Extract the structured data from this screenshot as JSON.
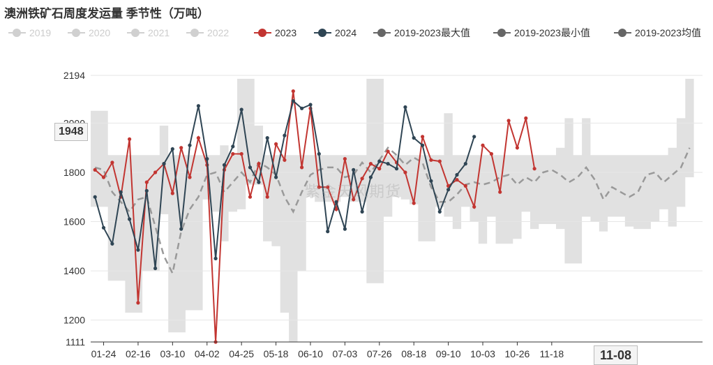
{
  "title": "澳洲铁矿石周度发运量 季节性（万吨）",
  "watermark": "紫金天风期货",
  "pointer": {
    "y_value": "1948",
    "x_value": "11-08"
  },
  "legend": [
    {
      "key": "y2019",
      "label": "2019",
      "color": "#d0d0d0",
      "active": false
    },
    {
      "key": "y2020",
      "label": "2020",
      "color": "#d0d0d0",
      "active": false
    },
    {
      "key": "y2021",
      "label": "2021",
      "color": "#d0d0d0",
      "active": false
    },
    {
      "key": "y2022",
      "label": "2022",
      "color": "#d0d0d0",
      "active": false
    },
    {
      "key": "y2023",
      "label": "2023",
      "color": "#c23531",
      "active": true
    },
    {
      "key": "y2024",
      "label": "2024",
      "color": "#2f4554",
      "active": true
    },
    {
      "key": "max",
      "label": "2019-2023最大值",
      "color": "#666666",
      "active": true
    },
    {
      "key": "min",
      "label": "2019-2023最小值",
      "color": "#666666",
      "active": true
    },
    {
      "key": "avg",
      "label": "2019-2023均值",
      "color": "#666666",
      "active": true
    }
  ],
  "chart_data": {
    "type": "line",
    "title": "澳洲铁矿石周度发运量 季节性（万吨）",
    "ylim": [
      1111,
      2194
    ],
    "y_ticks": [
      1111,
      1200,
      1400,
      1600,
      1800,
      2000,
      2194
    ],
    "x_tick_labels": [
      "01-24",
      "02-16",
      "03-10",
      "04-02",
      "04-25",
      "05-18",
      "06-10",
      "07-03",
      "07-26",
      "08-18",
      "09-10",
      "10-03",
      "10-26",
      "11-18"
    ],
    "grid": true,
    "legend_position": "top",
    "band_max": [
      2050,
      2050,
      1870,
      1870,
      1870,
      1870,
      1870,
      1870,
      1990,
      1870,
      1870,
      1870,
      1870,
      1870,
      1870,
      1910,
      1870,
      2180,
      2180,
      1990,
      1870,
      1870,
      1870,
      1870,
      1870,
      1870,
      1870,
      1870,
      1870,
      1870,
      1870,
      1870,
      2180,
      2180,
      1870,
      1870,
      1870,
      1870,
      1870,
      1870,
      1870,
      2040,
      1870,
      1870,
      1870,
      1870,
      1870,
      1870,
      1870,
      1870,
      1870,
      1870,
      1870,
      1870,
      1900,
      2020,
      1870,
      2020,
      1870,
      1870,
      1870,
      1870,
      1870,
      1870,
      1870,
      1870,
      1870,
      1900,
      2020,
      2180
    ],
    "band_min": [
      1660,
      1660,
      1360,
      1360,
      1230,
      1230,
      1400,
      1400,
      1630,
      1150,
      1150,
      1240,
      1240,
      1690,
      1640,
      1520,
      1640,
      1650,
      1750,
      1750,
      1520,
      1500,
      1230,
      1110,
      1400,
      1700,
      1680,
      1680,
      1680,
      1700,
      1680,
      1680,
      1350,
      1350,
      1620,
      1700,
      1690,
      1670,
      1520,
      1520,
      1660,
      1620,
      1570,
      1660,
      1600,
      1510,
      1620,
      1510,
      1510,
      1530,
      1640,
      1570,
      1590,
      1590,
      1570,
      1430,
      1430,
      1620,
      1600,
      1560,
      1620,
      1620,
      1580,
      1570,
      1570,
      1600,
      1650,
      1580,
      1660,
      1780
    ],
    "avg": [
      1820,
      1810,
      1720,
      1680,
      1640,
      1690,
      1700,
      1580,
      1460,
      1390,
      1560,
      1650,
      1700,
      1790,
      1800,
      1720,
      1760,
      1800,
      1760,
      1840,
      1820,
      1790,
      1700,
      1640,
      1720,
      1790,
      1810,
      1820,
      1820,
      1780,
      1790,
      1840,
      1800,
      1850,
      1900,
      1870,
      1830,
      1860,
      1840,
      1740,
      1680,
      1680,
      1710,
      1750,
      1760,
      1750,
      1760,
      1780,
      1790,
      1750,
      1780,
      1760,
      1800,
      1810,
      1790,
      1760,
      1780,
      1820,
      1770,
      1690,
      1740,
      1720,
      1700,
      1720,
      1790,
      1800,
      1760,
      1790,
      1820,
      1900
    ],
    "series": [
      {
        "name": "2023",
        "color": "#c23531",
        "values": [
          1810,
          1780,
          1840,
          1700,
          1935,
          1270,
          1760,
          1800,
          1835,
          1715,
          1900,
          1780,
          1940,
          1830,
          1111,
          1810,
          1875,
          1875,
          1700,
          1835,
          1700,
          1915,
          1850,
          2130,
          1820,
          2060,
          1740,
          1740,
          1650,
          1855,
          1690,
          1775,
          1835,
          1815,
          1885,
          1840,
          1800,
          1675,
          1945,
          1850,
          1845,
          1745,
          1770,
          1745,
          1660,
          1910,
          1875,
          1720,
          2010,
          1900,
          2020,
          1815
        ]
      },
      {
        "name": "2024",
        "color": "#2f4554",
        "values": [
          1700,
          1575,
          1510,
          1720,
          1610,
          1485,
          1725,
          1410,
          1835,
          1895,
          1570,
          1910,
          2070,
          1855,
          1450,
          1830,
          1905,
          2055,
          1820,
          1760,
          1940,
          1780,
          1950,
          2090,
          2060,
          2075,
          1875,
          1560,
          1680,
          1570,
          1810,
          1640,
          1780,
          1845,
          1835,
          1815,
          2065,
          1940,
          1910,
          1765,
          1640,
          1730,
          1790,
          1835,
          1945
        ]
      }
    ]
  }
}
